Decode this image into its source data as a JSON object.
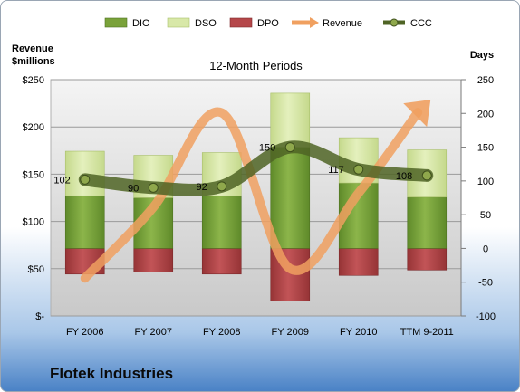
{
  "chart_data": {
    "type": "bar",
    "title": "12-Month Periods",
    "ylabel_left": "Revenue\n$millions",
    "ylabel_right": "Days",
    "categories": [
      "FY 2006",
      "FY 2007",
      "FY 2008",
      "FY 2009",
      "FY 2010",
      "TTM 9-2011"
    ],
    "ylim_left": [
      0,
      250
    ],
    "ylim_right": [
      -100,
      250
    ],
    "yticks_left": [
      {
        "value": 0,
        "label": "$-"
      },
      {
        "value": 50,
        "label": "$50"
      },
      {
        "value": 100,
        "label": "$100"
      },
      {
        "value": 150,
        "label": "$150"
      },
      {
        "value": 200,
        "label": "$200"
      },
      {
        "value": 250,
        "label": "$250"
      }
    ],
    "yticks_right": [
      -100,
      -50,
      0,
      50,
      100,
      150,
      200,
      250
    ],
    "series": [
      {
        "name": "DIO",
        "axis": "right",
        "kind": "stacked-bar",
        "color": "#7aa23a",
        "values": [
          78,
          75,
          78,
          150,
          97,
          76
        ]
      },
      {
        "name": "DSO",
        "axis": "right",
        "kind": "stacked-bar",
        "color": "#d8e8a8",
        "values": [
          66,
          63,
          64,
          80,
          67,
          70
        ]
      },
      {
        "name": "DPO",
        "axis": "right",
        "kind": "negative-bar",
        "color": "#b5474a",
        "values": [
          -38,
          -35,
          -38,
          -78,
          -40,
          -32
        ]
      },
      {
        "name": "Revenue",
        "axis": "left",
        "kind": "line",
        "color": "#f0a060",
        "values": [
          40,
          115,
          215,
          50,
          130,
          225
        ]
      },
      {
        "name": "CCC",
        "axis": "right",
        "kind": "line",
        "color": "#5a6e2a",
        "values": [
          102,
          90,
          92,
          150,
          117,
          108
        ]
      }
    ],
    "data_labels": [
      "102",
      "90",
      "92",
      "150",
      "117",
      "108"
    ],
    "legend": [
      "DIO",
      "DSO",
      "DPO",
      "Revenue",
      "CCC"
    ],
    "legend_position": "top",
    "grid": true
  },
  "company": "Flotek Industries"
}
